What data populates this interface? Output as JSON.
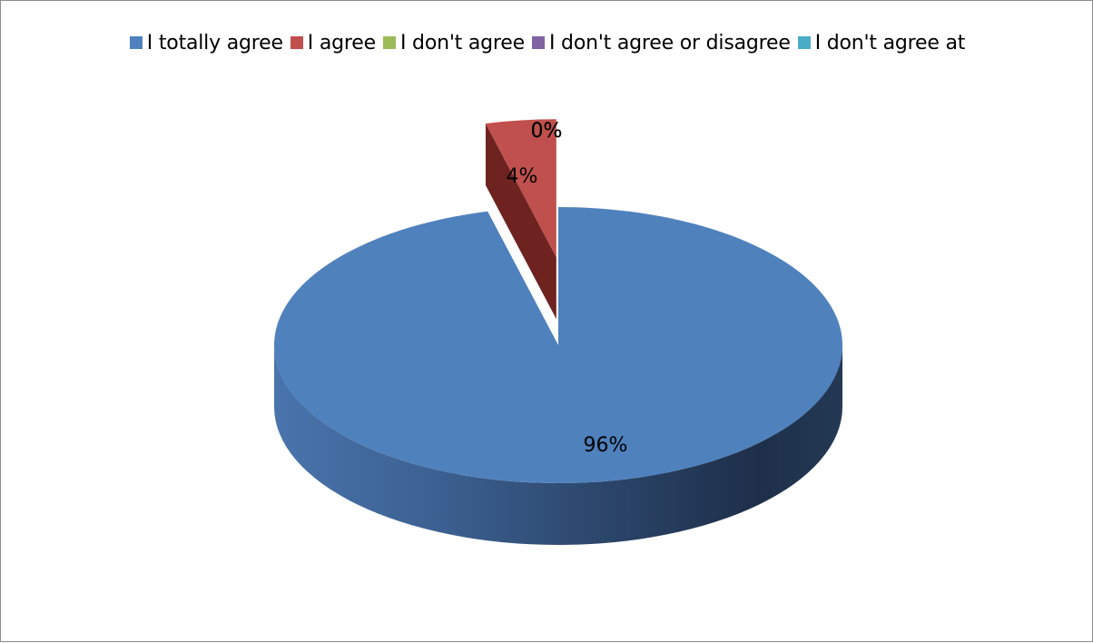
{
  "chart_data": {
    "type": "pie",
    "style": "3d-exploded",
    "title": "",
    "categories": [
      "I totally agree",
      "I agree",
      "I don't agree",
      "I don't agree or disagree",
      "I don't agree at"
    ],
    "values": [
      96,
      4,
      0,
      0,
      0
    ],
    "data_labels": [
      "96%",
      "4%",
      "0%",
      "0%",
      "0%"
    ],
    "colors": [
      "#4F81BD",
      "#C0504D",
      "#9BBB59",
      "#8064A2",
      "#4BACC6"
    ],
    "side_colors": [
      "#2A4670",
      "#6E2321",
      "#5C7332",
      "#4A3A60",
      "#2C6777"
    ],
    "legend_position": "top",
    "unit": "%"
  }
}
